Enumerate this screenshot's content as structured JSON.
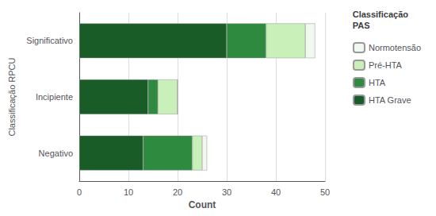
{
  "chart_data": {
    "type": "bar",
    "orientation": "horizontal",
    "stacked": true,
    "categories": [
      "Negativo",
      "Incipiente",
      "Significativo"
    ],
    "series": [
      {
        "name": "HTA Grave",
        "color": "#1a5c28",
        "values": [
          13,
          14,
          30
        ]
      },
      {
        "name": "HTA",
        "color": "#2d8a3e",
        "values": [
          10,
          2,
          8
        ]
      },
      {
        "name": "Pré-HTA",
        "color": "#c8f0b8",
        "values": [
          2,
          4,
          8
        ]
      },
      {
        "name": "Normotensão",
        "color": "#f0f8f0",
        "values": [
          1,
          0,
          2
        ]
      }
    ],
    "xlabel": "Count",
    "ylabel": "Classificação RPCU",
    "xlim": [
      0,
      50
    ],
    "xticks": [
      0,
      10,
      20,
      30,
      40,
      50
    ],
    "grid": true,
    "legend": "right",
    "legend_title": "Classificação\nPAS"
  }
}
